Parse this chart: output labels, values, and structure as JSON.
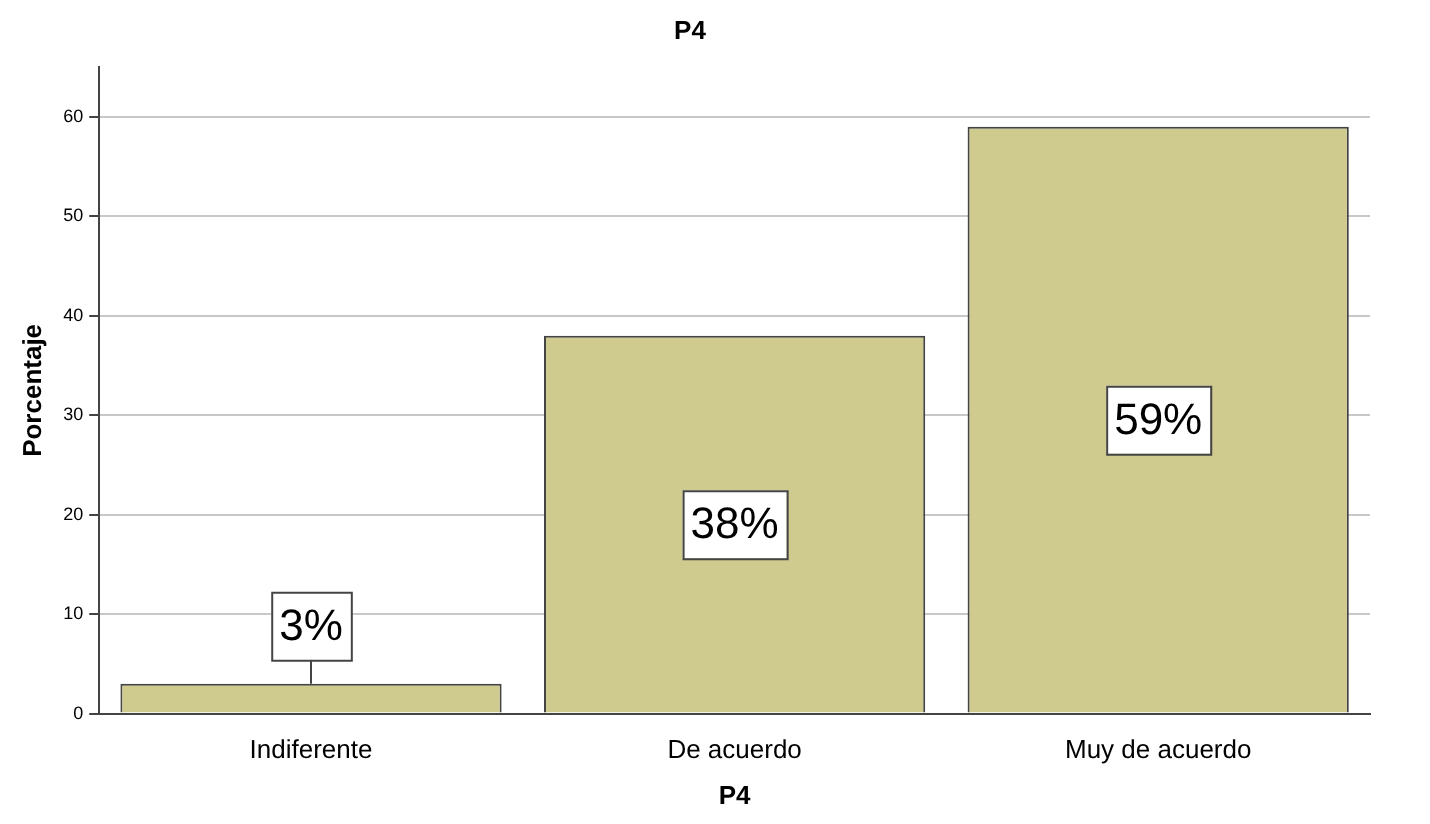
{
  "chart_data": {
    "type": "bar",
    "title": "P4",
    "xlabel": "P4",
    "ylabel": "Porcentaje",
    "categories": [
      "Indiferente",
      "De acuerdo",
      "Muy de acuerdo"
    ],
    "values": [
      3,
      38,
      59
    ],
    "value_labels": [
      "3%",
      "38%",
      "59%"
    ],
    "color": "#cfca8e",
    "ylim": [
      0,
      65
    ],
    "yticks": [
      0,
      10,
      20,
      30,
      40,
      50,
      60
    ],
    "grid": "y",
    "legend": false
  }
}
